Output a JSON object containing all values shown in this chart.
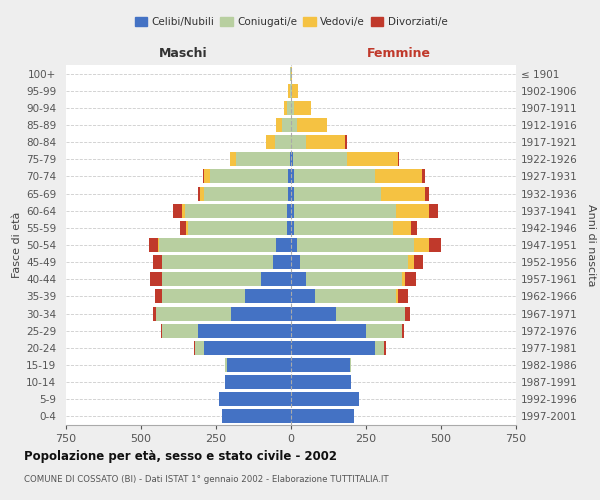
{
  "age_groups": [
    "0-4",
    "5-9",
    "10-14",
    "15-19",
    "20-24",
    "25-29",
    "30-34",
    "35-39",
    "40-44",
    "45-49",
    "50-54",
    "55-59",
    "60-64",
    "65-69",
    "70-74",
    "75-79",
    "80-84",
    "85-89",
    "90-94",
    "95-99",
    "100+"
  ],
  "birth_years": [
    "1997-2001",
    "1992-1996",
    "1987-1991",
    "1982-1986",
    "1977-1981",
    "1972-1976",
    "1967-1971",
    "1962-1966",
    "1957-1961",
    "1952-1956",
    "1947-1951",
    "1942-1946",
    "1937-1941",
    "1932-1936",
    "1927-1931",
    "1922-1926",
    "1917-1921",
    "1912-1916",
    "1907-1911",
    "1902-1906",
    "≤ 1901"
  ],
  "male_celibi": [
    230,
    240,
    220,
    215,
    290,
    310,
    200,
    155,
    100,
    60,
    50,
    15,
    15,
    10,
    10,
    5,
    0,
    0,
    0,
    0,
    0
  ],
  "male_coniugati": [
    0,
    0,
    0,
    5,
    30,
    120,
    250,
    275,
    330,
    370,
    390,
    330,
    340,
    280,
    260,
    180,
    55,
    30,
    15,
    5,
    2
  ],
  "male_vedovi": [
    0,
    0,
    0,
    0,
    0,
    0,
    0,
    0,
    0,
    0,
    5,
    5,
    10,
    15,
    20,
    20,
    30,
    20,
    10,
    5,
    0
  ],
  "male_divorziati": [
    0,
    0,
    0,
    0,
    5,
    5,
    10,
    25,
    40,
    30,
    30,
    20,
    30,
    5,
    5,
    0,
    0,
    0,
    0,
    0,
    0
  ],
  "female_celibi": [
    210,
    225,
    200,
    195,
    280,
    250,
    150,
    80,
    50,
    30,
    20,
    10,
    10,
    10,
    10,
    5,
    0,
    0,
    0,
    0,
    0
  ],
  "female_coniugati": [
    0,
    0,
    0,
    5,
    30,
    120,
    230,
    270,
    320,
    360,
    390,
    330,
    340,
    290,
    270,
    180,
    50,
    20,
    10,
    3,
    1
  ],
  "female_vedovi": [
    0,
    0,
    0,
    0,
    0,
    0,
    0,
    5,
    10,
    20,
    50,
    60,
    110,
    145,
    155,
    170,
    130,
    100,
    55,
    20,
    2
  ],
  "female_divorziati": [
    0,
    0,
    0,
    0,
    5,
    5,
    15,
    35,
    35,
    30,
    40,
    20,
    30,
    15,
    10,
    5,
    5,
    0,
    0,
    0,
    0
  ],
  "colors": {
    "celibi": "#4472C4",
    "coniugati": "#b8cfa0",
    "vedovi": "#f5c242",
    "divorziati": "#c0392b"
  },
  "xlim": 750,
  "title": "Popolazione per età, sesso e stato civile - 2002",
  "subtitle": "COMUNE DI COSSATO (BI) - Dati ISTAT 1° gennaio 2002 - Elaborazione TUTTITALIA.IT",
  "ylabel_left": "Fasce di età",
  "ylabel_right": "Anni di nascita",
  "xlabel_left": "Maschi",
  "xlabel_right": "Femmine",
  "background_color": "#eeeeee",
  "plot_background": "#ffffff"
}
